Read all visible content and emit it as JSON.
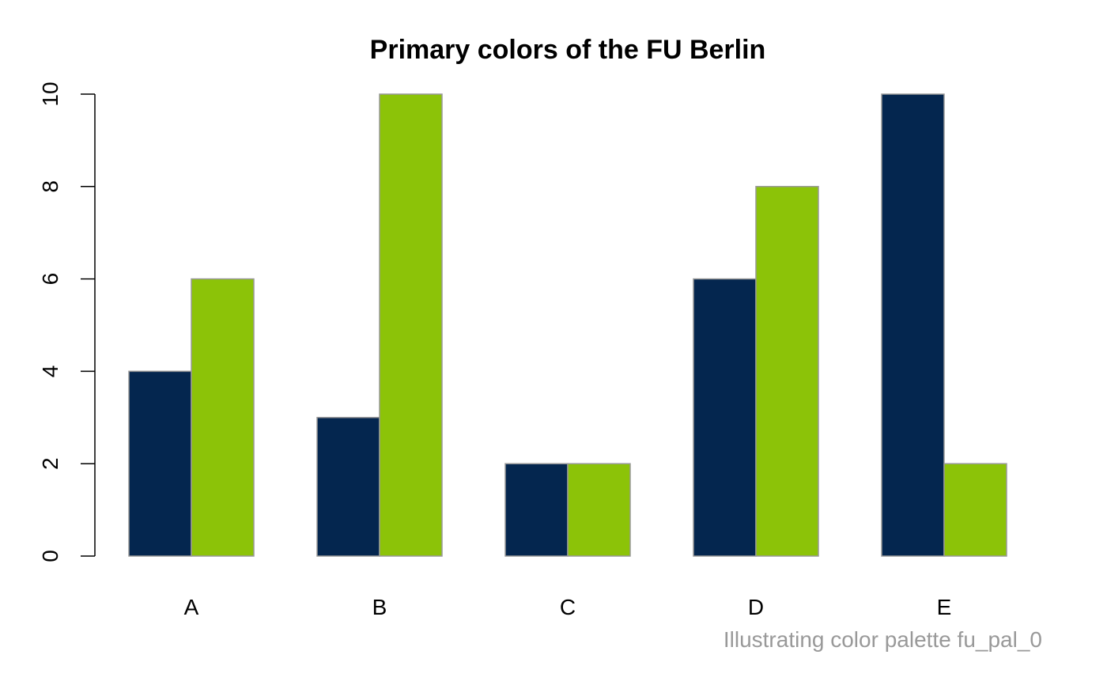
{
  "chart_data": {
    "type": "bar",
    "title": "Primary colors of the FU Berlin",
    "caption": "Illustrating color palette fu_pal_0",
    "categories": [
      "A",
      "B",
      "C",
      "D",
      "E"
    ],
    "series": [
      {
        "values": [
          4,
          3,
          2,
          6,
          10
        ],
        "color": "#04264f"
      },
      {
        "values": [
          6,
          10,
          2,
          8,
          2
        ],
        "color": "#8cc308"
      }
    ],
    "bar_border_color": "#999999",
    "yticks": [
      0,
      2,
      4,
      6,
      8,
      10
    ],
    "ylim": [
      0,
      10
    ],
    "grid": false,
    "legend": "none"
  }
}
